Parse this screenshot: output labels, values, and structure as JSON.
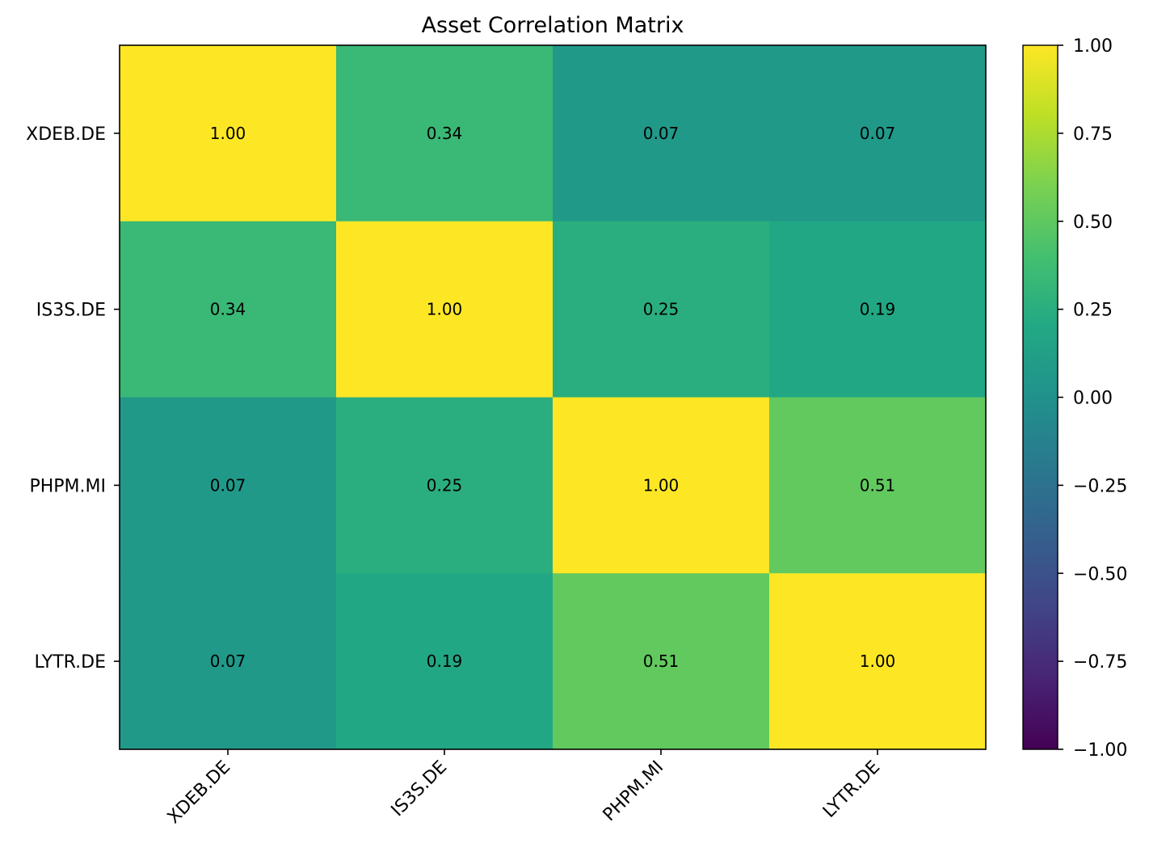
{
  "chart_data": {
    "type": "heatmap",
    "title": "Asset Correlation Matrix",
    "xlabel": "",
    "ylabel": "",
    "x_categories": [
      "XDEB.DE",
      "IS3S.DE",
      "PHPM.MI",
      "LYTR.DE"
    ],
    "y_categories": [
      "XDEB.DE",
      "IS3S.DE",
      "PHPM.MI",
      "LYTR.DE"
    ],
    "values": [
      [
        1.0,
        0.34,
        0.07,
        0.07
      ],
      [
        0.34,
        1.0,
        0.25,
        0.19
      ],
      [
        0.07,
        0.25,
        1.0,
        0.51
      ],
      [
        0.07,
        0.19,
        0.51,
        1.0
      ]
    ],
    "value_format_decimals": 2,
    "colormap": "viridis",
    "color_range": [
      -1.0,
      1.0
    ],
    "colorbar_ticks": [
      1.0,
      0.75,
      0.5,
      0.25,
      0.0,
      -0.25,
      -0.5,
      -0.75,
      -1.0
    ],
    "colorbar_tick_labels": [
      "1.00",
      "0.75",
      "0.50",
      "0.25",
      "0.00",
      "−0.25",
      "−0.50",
      "−0.75",
      "−1.00"
    ],
    "grid": false,
    "legend": "colorbar right"
  }
}
